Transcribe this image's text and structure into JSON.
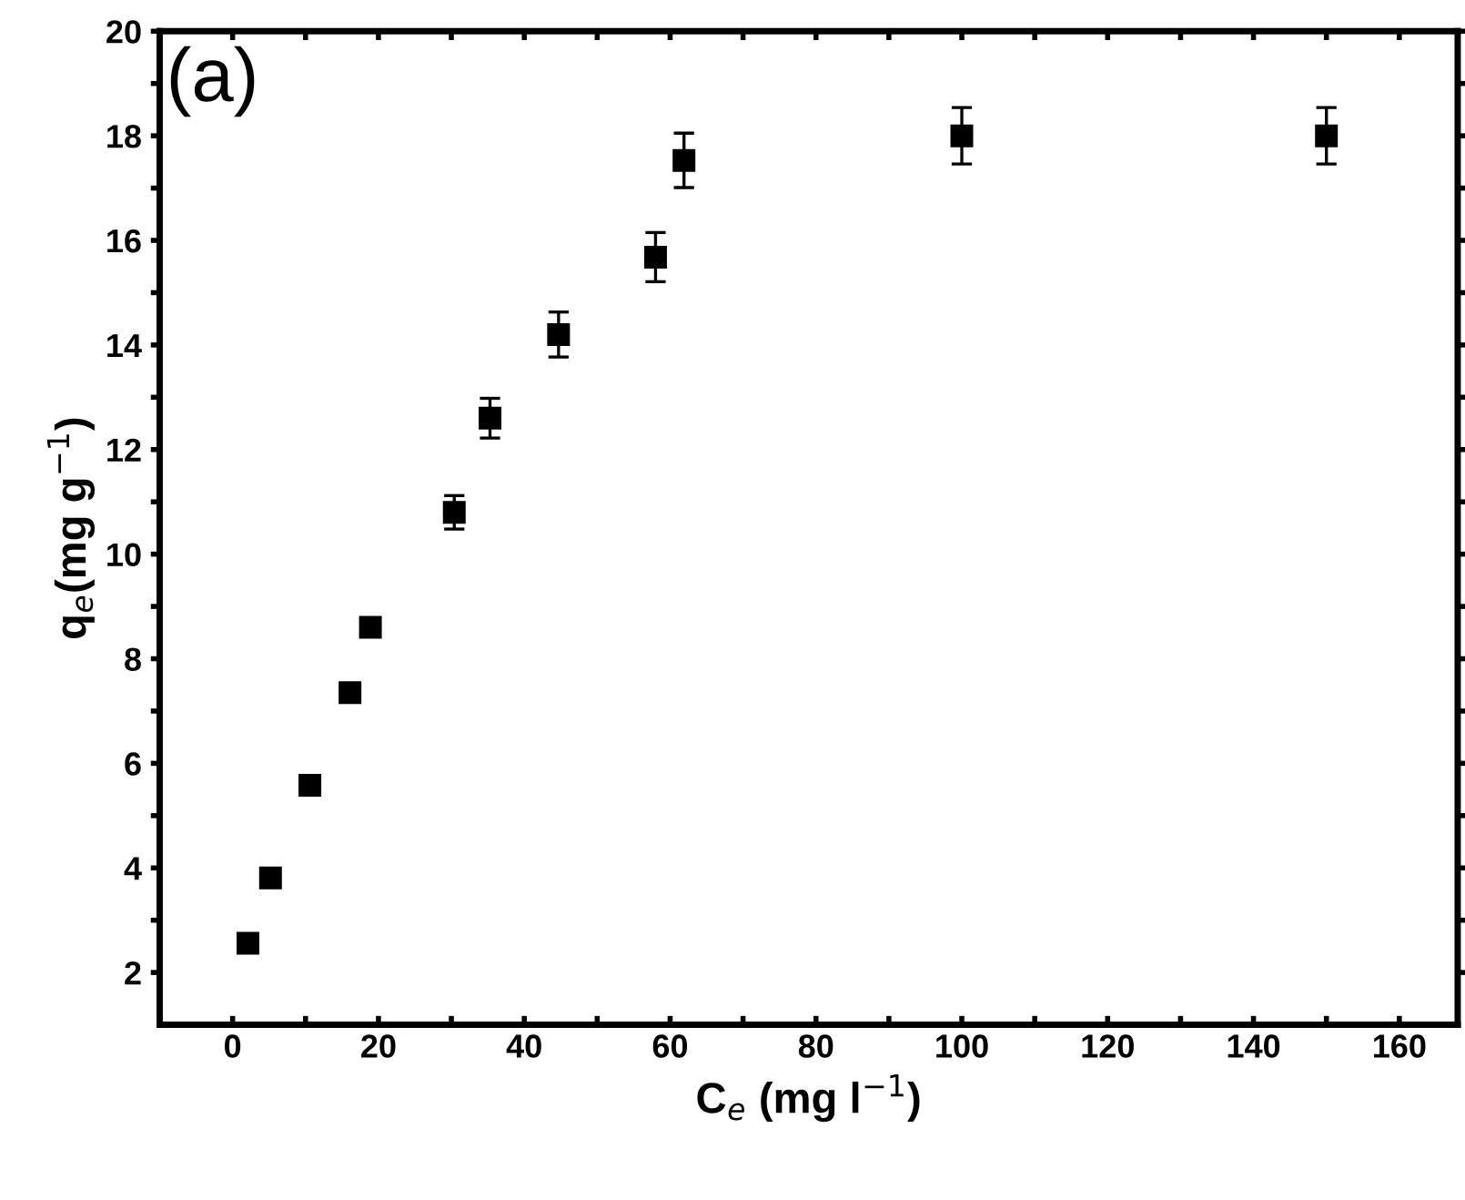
{
  "chart_data": {
    "type": "scatter",
    "xlabel": "C$_{e}$ (mg l$^{−1}$)",
    "ylabel": "q$_{e}$(mg g$^{−1}$)",
    "annotations": [
      "(a)"
    ],
    "x": [
      2.1,
      5.2,
      10.6,
      16.1,
      18.9,
      30.4,
      35.3,
      44.7,
      58.0,
      61.9,
      100,
      150
    ],
    "series": [
      {
        "color": "#000000",
        "values": [
          2.56,
          3.81,
          5.58,
          7.35,
          8.6,
          10.8,
          12.6,
          14.2,
          15.68,
          17.53,
          18.0,
          18.0
        ],
        "errors": [
          null,
          null,
          null,
          null,
          0.15,
          0.32,
          0.38,
          0.43,
          0.47,
          0.52,
          0.54,
          0.54
        ]
      }
    ],
    "marker": "square",
    "xlim": [
      -10,
      168
    ],
    "ylim": [
      1,
      20
    ],
    "xticks": [
      0,
      {
        "value": 10,
        "label": null
      },
      20,
      {
        "value": 30,
        "label": null
      },
      40,
      {
        "value": 50,
        "label": null
      },
      60,
      {
        "value": 70,
        "label": null
      },
      80,
      {
        "value": 90,
        "label": null
      },
      100,
      {
        "value": 110,
        "label": null
      },
      120,
      {
        "value": 130,
        "label": null
      },
      140,
      {
        "value": 150,
        "label": null
      },
      160
    ],
    "yticks": [
      2,
      {
        "value": 3,
        "label": null
      },
      4,
      {
        "value": 5,
        "label": null
      },
      6,
      {
        "value": 7,
        "label": null
      },
      8,
      {
        "value": 9,
        "label": null
      },
      10,
      {
        "value": 11,
        "label": null
      },
      12,
      {
        "value": 13,
        "label": null
      },
      14,
      {
        "value": 15,
        "label": null
      },
      16,
      {
        "value": 17,
        "label": null
      },
      18,
      {
        "value": 19,
        "label": null
      },
      20
    ],
    "grid": false
  }
}
